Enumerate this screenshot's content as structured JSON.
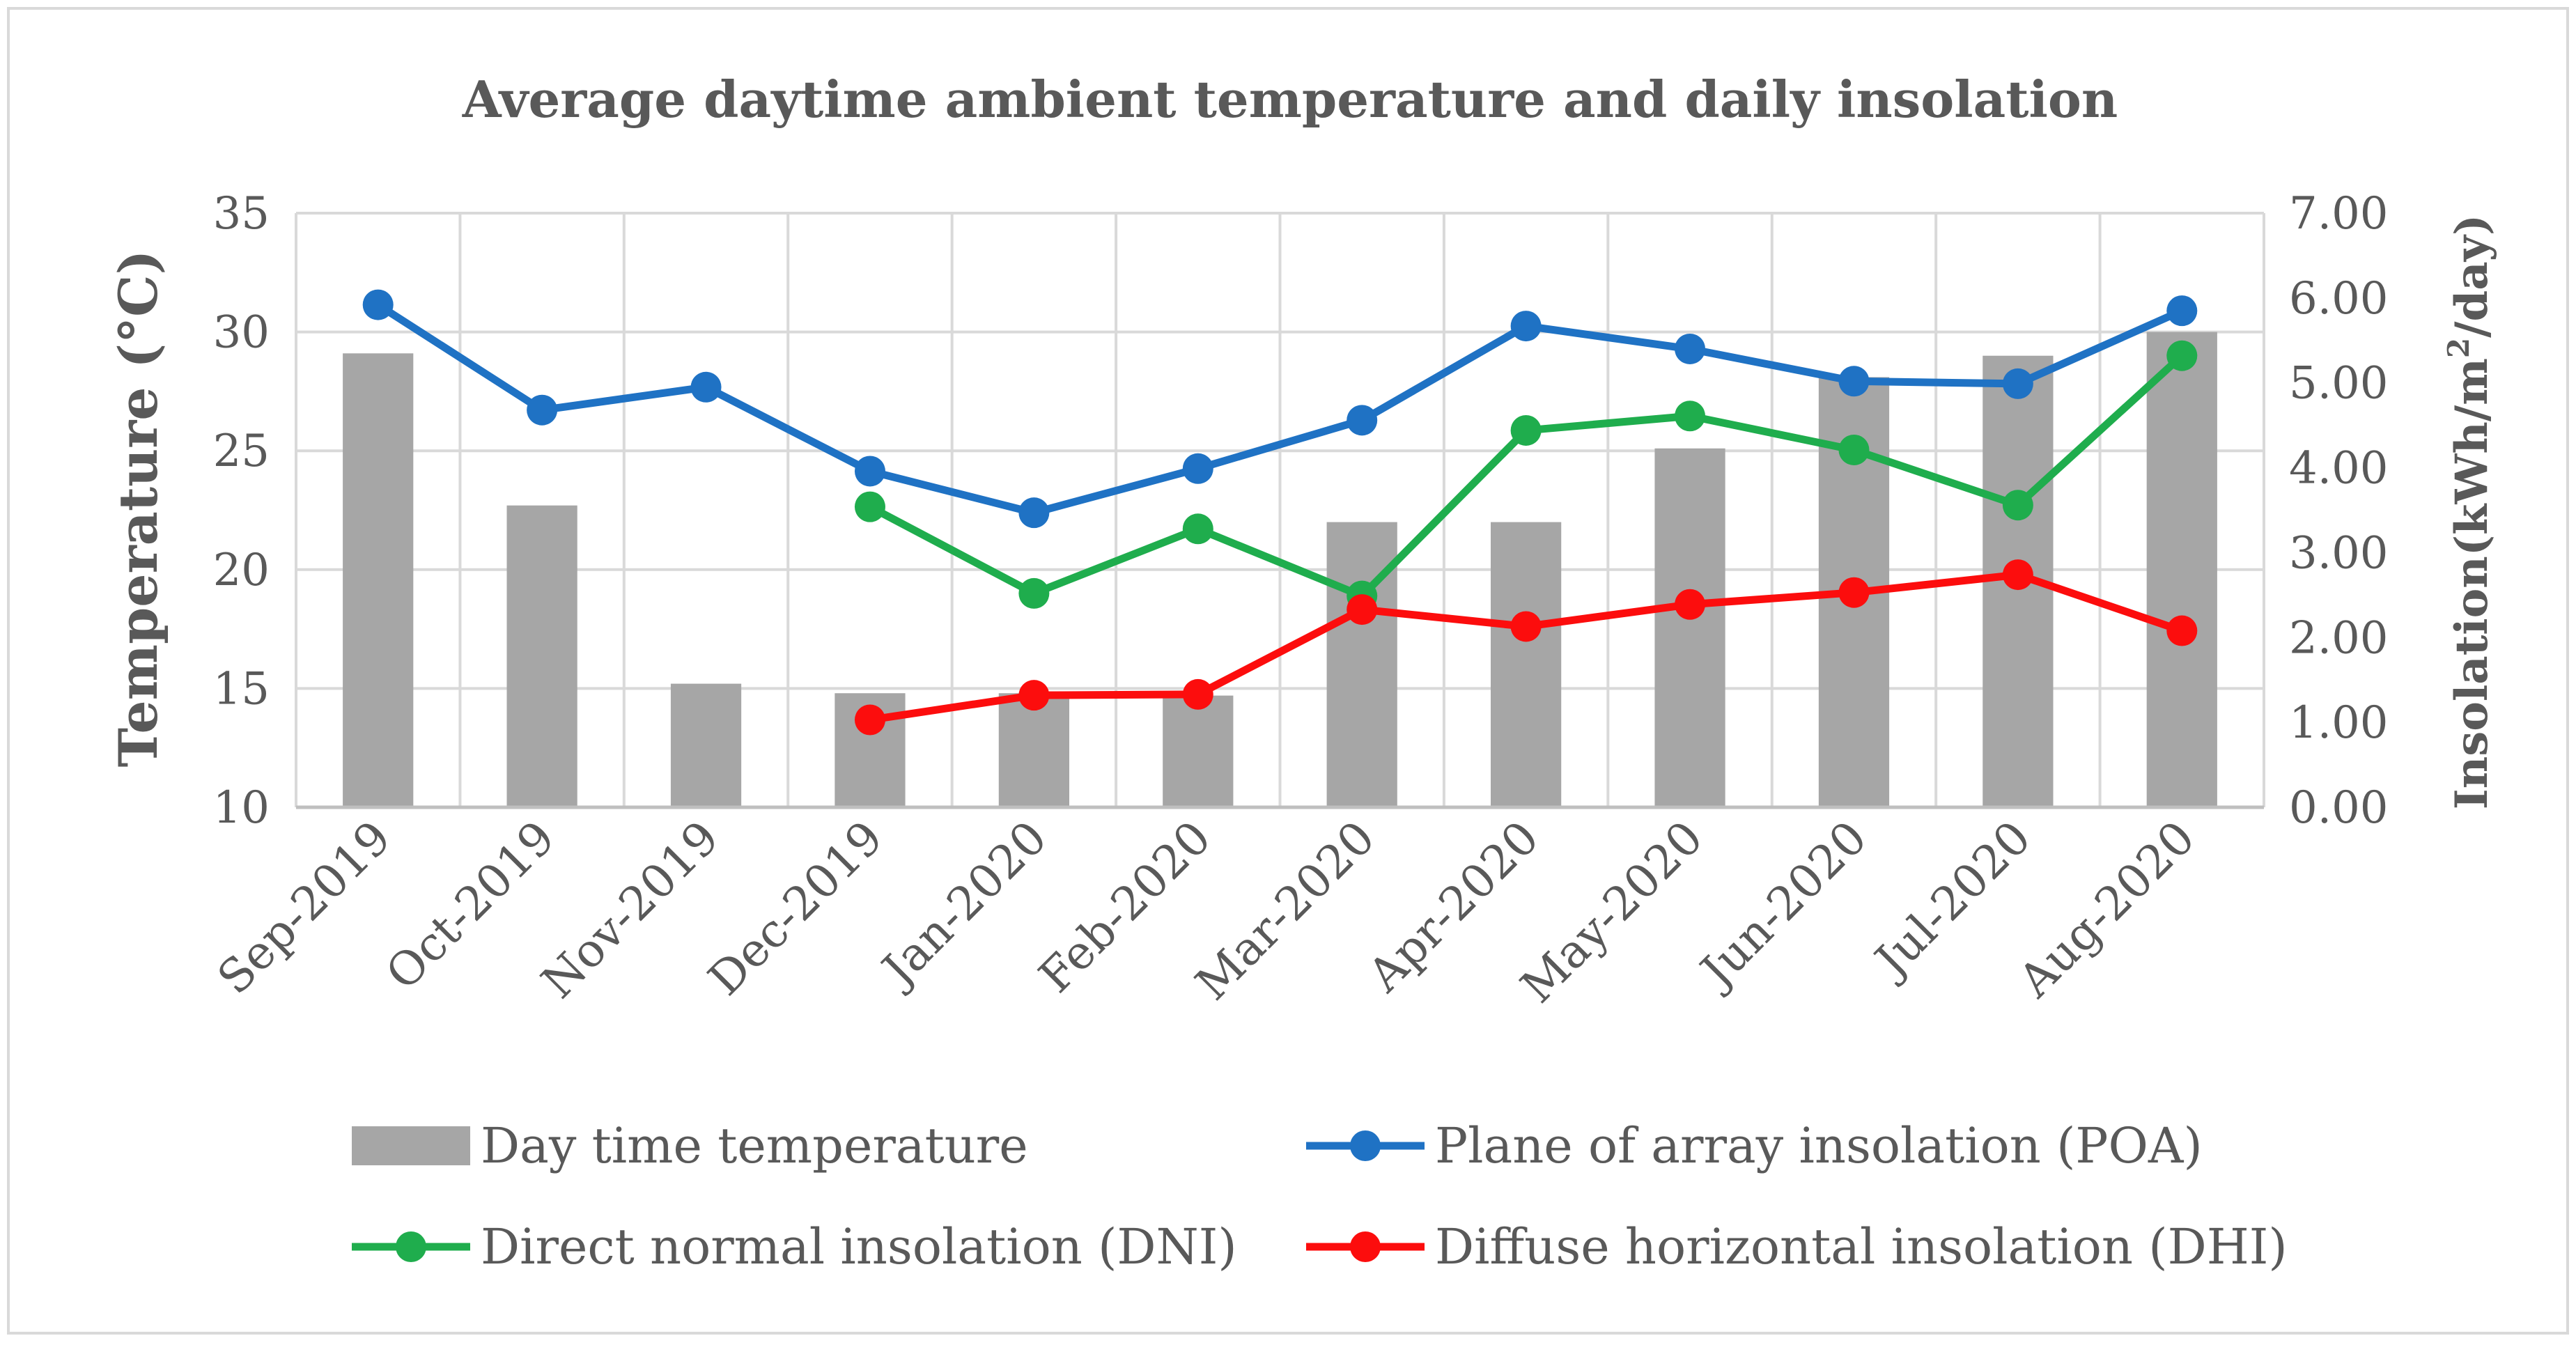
{
  "chart_data": {
    "type": "bar+line",
    "title": "Average daytime ambient temperature and daily insolation",
    "categories": [
      "Sep-2019",
      "Oct-2019",
      "Nov-2019",
      "Dec-2019",
      "Jan-2020",
      "Feb-2020",
      "Mar-2020",
      "Apr-2020",
      "May-2020",
      "Jun-2020",
      "Jul-2020",
      "Aug-2020"
    ],
    "left_axis": {
      "label": "Temperature (°C)",
      "min": 10,
      "max": 35,
      "step": 5,
      "ticks": [
        "10",
        "15",
        "20",
        "25",
        "30",
        "35"
      ]
    },
    "right_axis": {
      "label_main": "Insolation(kWh/m",
      "label_sup": "2",
      "label_end": "/day)",
      "min": 0,
      "max": 7,
      "step": 1,
      "ticks": [
        "0.00",
        "1.00",
        "2.00",
        "3.00",
        "4.00",
        "5.00",
        "6.00",
        "7.00"
      ]
    },
    "bar_series": {
      "name": "Day time temperature",
      "axis": "left",
      "color": "#a6a6a6",
      "values": [
        29.1,
        22.7,
        15.2,
        14.8,
        14.8,
        14.7,
        22.0,
        22.0,
        25.1,
        28.1,
        29.0,
        30.0
      ]
    },
    "line_series": [
      {
        "name": "Plane of array insolation (POA)",
        "axis": "right",
        "color": "#1f72c4",
        "values": [
          5.92,
          4.68,
          4.95,
          3.96,
          3.47,
          3.99,
          4.56,
          5.67,
          5.4,
          5.02,
          4.99,
          5.85
        ]
      },
      {
        "name": "Direct normal insolation (DNI)",
        "axis": "right",
        "color": "#1fad4d",
        "values": [
          null,
          null,
          null,
          3.54,
          2.52,
          3.28,
          2.49,
          4.44,
          4.61,
          4.21,
          3.56,
          5.32
        ]
      },
      {
        "name": "Diffuse horizontal insolation (DHI)",
        "axis": "right",
        "color": "#fc0d0d",
        "values": [
          null,
          null,
          null,
          1.03,
          1.32,
          1.33,
          2.33,
          2.13,
          2.39,
          2.53,
          2.74,
          2.08
        ]
      }
    ],
    "legend": {
      "placement": "bottom",
      "items": [
        {
          "label": "Day time temperature",
          "kind": "bar",
          "color": "#a6a6a6"
        },
        {
          "label": "Plane of array insolation (POA)",
          "kind": "line",
          "color": "#1f72c4"
        },
        {
          "label": "Direct normal insolation (DNI)",
          "kind": "line",
          "color": "#1fad4d"
        },
        {
          "label": "Diffuse horizontal insolation (DHI)",
          "kind": "line",
          "color": "#fc0d0d"
        }
      ]
    },
    "grid": true
  }
}
